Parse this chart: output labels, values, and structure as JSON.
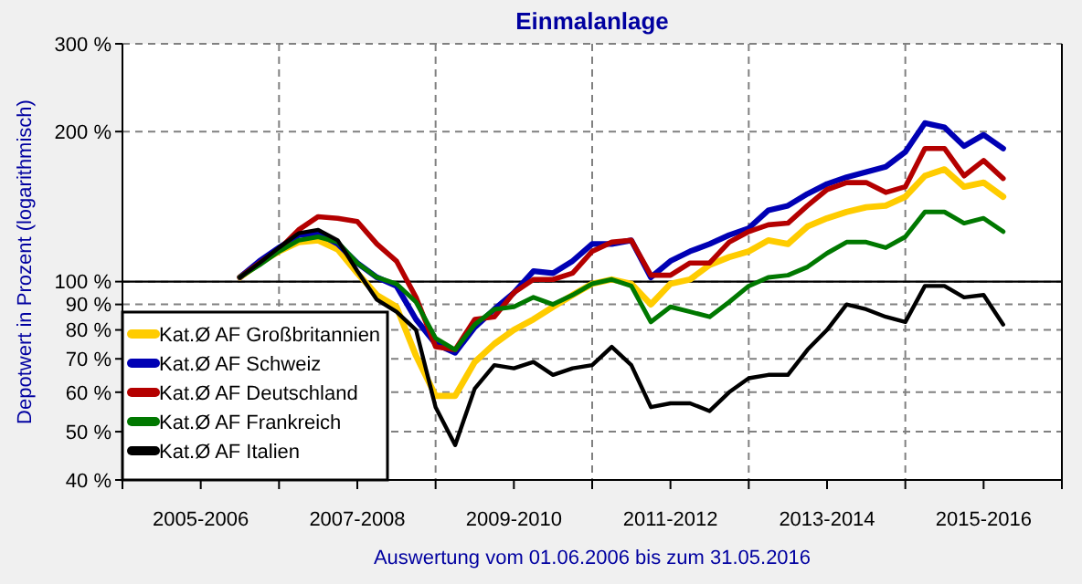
{
  "chart_data": {
    "type": "line",
    "title": "Einmalanlage",
    "ylabel": "Depotwert in Prozent (logarithmisch)",
    "annotations": [
      "Auswertung vom 01.06.2006 bis zum 31.05.2016"
    ],
    "log": true,
    "grid": true,
    "legend": "bottom left",
    "line_style": "solid",
    "marker": "none",
    "categories": [
      null,
      null,
      null,
      null,
      "2005-2006",
      null,
      null,
      null,
      null,
      null,
      null,
      null,
      "2007-2008",
      null,
      null,
      null,
      null,
      null,
      null,
      null,
      "2009-2010",
      null,
      null,
      null,
      null,
      null,
      null,
      null,
      "2011-2012",
      null,
      null,
      null,
      null,
      null,
      null,
      null,
      "2013-2014",
      null,
      null,
      null,
      null,
      null,
      null,
      null,
      "2015-2016",
      null,
      null,
      null,
      null
    ],
    "ylim": [
      40,
      300
    ],
    "yticks": [
      {
        "value": 40,
        "label": "40 %"
      },
      {
        "value": 50,
        "label": "50 %"
      },
      {
        "value": 60,
        "label": "60 %"
      },
      {
        "value": 70,
        "label": "70 %"
      },
      {
        "value": 80,
        "label": "80 %"
      },
      {
        "value": 90,
        "label": "90 %"
      },
      {
        "value": 100,
        "label": "100 %"
      },
      {
        "value": 200,
        "label": "200 %"
      },
      {
        "value": 300,
        "label": "300 %"
      }
    ],
    "ref_lines": [
      {
        "axis": "y",
        "value": 100,
        "label": null,
        "color": "#000000",
        "line_style": "solid"
      }
    ],
    "series": [
      {
        "name": "Kat.Ø AF Großbritannien",
        "color": "#ffcc00",
        "values": [
          null,
          null,
          null,
          null,
          null,
          null,
          102,
          109,
          115,
          120,
          121,
          116,
          104,
          94,
          89,
          71,
          59,
          59,
          69,
          75,
          80,
          84,
          89,
          94,
          99,
          101,
          99,
          90,
          99,
          101,
          108,
          112,
          115,
          121,
          119,
          129,
          134,
          138,
          141,
          142,
          148,
          163,
          168,
          155,
          158,
          148,
          null,
          null,
          null
        ]
      },
      {
        "name": "Kat.Ø AF Schweiz",
        "color": "#0000b4",
        "values": [
          null,
          null,
          null,
          null,
          null,
          null,
          102,
          110,
          117,
          124,
          125,
          119,
          109,
          102,
          98,
          84,
          75,
          72,
          81,
          88,
          95,
          105,
          104,
          110,
          119,
          119,
          121,
          102,
          110,
          115,
          119,
          124,
          128,
          139,
          142,
          150,
          157,
          162,
          166,
          170,
          182,
          208,
          204,
          187,
          197,
          185,
          null,
          null,
          null
        ]
      },
      {
        "name": "Kat.Ø AF Deutschland",
        "color": "#b40000",
        "values": [
          null,
          null,
          null,
          null,
          null,
          null,
          102,
          109,
          116,
          127,
          135,
          134,
          132,
          119,
          110,
          93,
          74,
          73,
          84,
          85,
          95,
          101,
          101,
          104,
          115,
          120,
          121,
          103,
          103,
          109,
          109,
          120,
          126,
          130,
          131,
          142,
          153,
          158,
          158,
          151,
          155,
          185,
          185,
          163,
          175,
          161,
          null,
          null,
          null
        ]
      },
      {
        "name": "Kat.Ø AF Frankreich",
        "color": "#007800",
        "values": [
          null,
          null,
          null,
          null,
          null,
          null,
          102,
          108,
          115,
          121,
          123,
          120,
          109,
          102,
          99,
          91,
          77,
          73,
          82,
          88,
          89,
          93,
          90,
          94,
          99,
          101,
          98,
          83,
          89,
          87,
          85,
          91,
          98,
          102,
          103,
          107,
          114,
          120,
          120,
          117,
          123,
          138,
          138,
          131,
          134,
          126,
          null,
          null,
          null
        ]
      },
      {
        "name": "Kat.Ø AF Italien",
        "color": "#000000",
        "values": [
          null,
          null,
          null,
          null,
          null,
          null,
          102,
          109,
          117,
          125,
          127,
          121,
          105,
          92,
          87,
          80,
          56,
          47,
          61,
          68,
          67,
          69,
          65,
          67,
          68,
          74,
          68,
          56,
          57,
          57,
          55,
          60,
          64,
          65,
          65,
          73,
          80,
          90,
          88,
          85,
          83,
          98,
          98,
          93,
          94,
          82,
          null,
          null,
          null
        ]
      }
    ]
  }
}
